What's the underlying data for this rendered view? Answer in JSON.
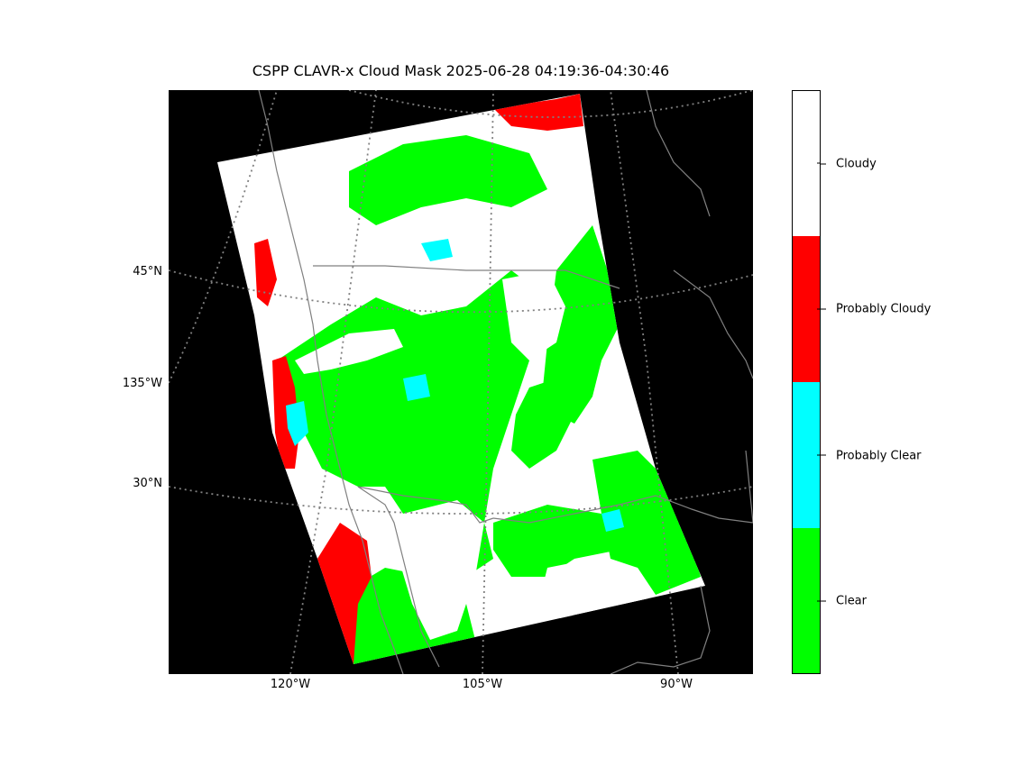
{
  "title": "CSPP CLAVR-x Cloud Mask 2025-06-28 04:19:36-04:30:46",
  "map": {
    "lat_labels": [
      "45°N",
      "30°N"
    ],
    "lon_label_left": "135°W",
    "lon_labels_bottom": [
      "120°W",
      "105°W",
      "90°W"
    ]
  },
  "colorbar": {
    "categories": [
      {
        "label": "Cloudy",
        "color": "#ffffff"
      },
      {
        "label": "Probably Cloudy",
        "color": "#ff0000"
      },
      {
        "label": "Probably Clear",
        "color": "#00ffff"
      },
      {
        "label": "Clear",
        "color": "#00ff00"
      }
    ]
  },
  "colors": {
    "background": "#000000",
    "coastline": "#808080",
    "gridline": "#808080",
    "clear": "#00ff00",
    "probably_clear": "#00ffff",
    "probably_cloudy": "#ff0000",
    "cloudy": "#ffffff"
  }
}
